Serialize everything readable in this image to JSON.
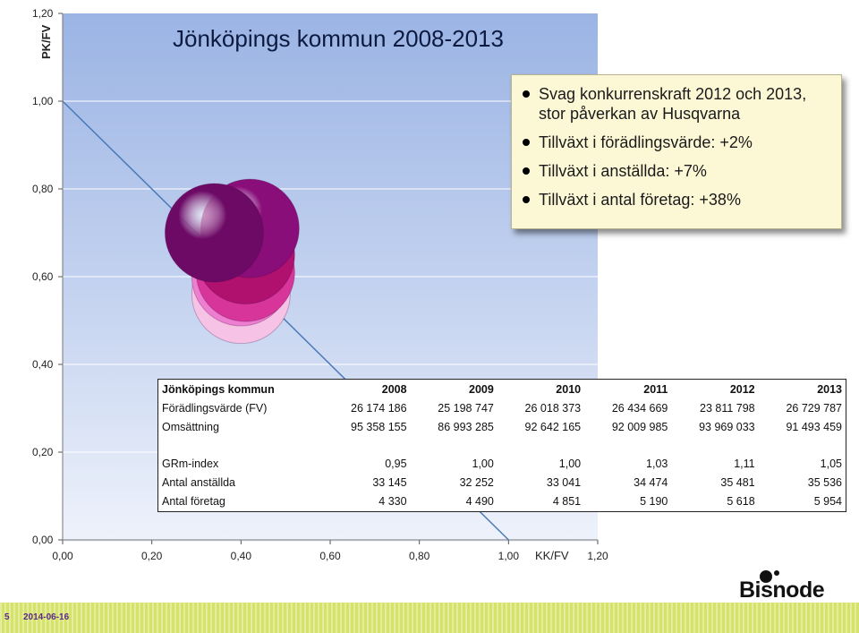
{
  "chart_data": {
    "type": "bubble",
    "title": "Jönköpings kommun 2008-2013",
    "xlabel": "KK/FV",
    "ylabel": "PK/FV",
    "xlim": [
      0,
      1.2
    ],
    "ylim": [
      0,
      1.2
    ],
    "x_ticks": [
      "0,00",
      "0,20",
      "0,40",
      "0,60",
      "0,80",
      "1,00",
      "1,20"
    ],
    "y_ticks": [
      "0,00",
      "0,20",
      "0,40",
      "0,60",
      "0,80",
      "1,00",
      "1,20"
    ],
    "grid": "horizontal",
    "reference_line": {
      "from": [
        0,
        1.0
      ],
      "to": [
        1.0,
        0
      ]
    },
    "bubbles": [
      {
        "year": "2008",
        "x": 0.4,
        "y": 0.56,
        "color": "#f6c2e6"
      },
      {
        "year": "2009",
        "x": 0.4,
        "y": 0.6,
        "color": "#ee7fd0"
      },
      {
        "year": "2010",
        "x": 0.41,
        "y": 0.61,
        "color": "#d8359a"
      },
      {
        "year": "2011",
        "x": 0.41,
        "y": 0.65,
        "color": "#b0116f"
      },
      {
        "year": "2012",
        "x": 0.42,
        "y": 0.71,
        "color": "#8a0e7a"
      },
      {
        "year": "2013",
        "x": 0.34,
        "y": 0.7,
        "color": "#6d0a66"
      }
    ],
    "table": {
      "header": [
        "Jönköpings kommun",
        "2008",
        "2009",
        "2010",
        "2011",
        "2012",
        "2013"
      ],
      "rows": [
        [
          "Förädlingsvärde (FV)",
          "26 174 186",
          "25 198 747",
          "26 018 373",
          "26 434 669",
          "23 811 798",
          "26 729 787"
        ],
        [
          "Omsättning",
          "95 358 155",
          "86 993 285",
          "92 642 165",
          "92 009 985",
          "93 969 033",
          "91 493 459"
        ],
        [
          "GRm-index",
          "0,95",
          "1,00",
          "1,00",
          "1,03",
          "1,11",
          "1,05"
        ],
        [
          "Antal anställda",
          "33 145",
          "32 252",
          "33 041",
          "34 474",
          "35 481",
          "35 536"
        ],
        [
          "Antal företag",
          "4 330",
          "4 490",
          "4 851",
          "5 190",
          "5 618",
          "5 954"
        ]
      ]
    }
  },
  "callout": {
    "items": [
      "Svag konkurrenskraft 2012 och 2013, stor påverkan av Husqvarna",
      "Tillväxt i förädlingsvärde: +2%",
      "Tillväxt i anställda: +7%",
      "Tillväxt i antal företag: +38%"
    ]
  },
  "footer": {
    "slide_number": "5",
    "date": "2014-06-16",
    "logo": "Bisnode",
    "bar_color": "#d6e36a"
  }
}
